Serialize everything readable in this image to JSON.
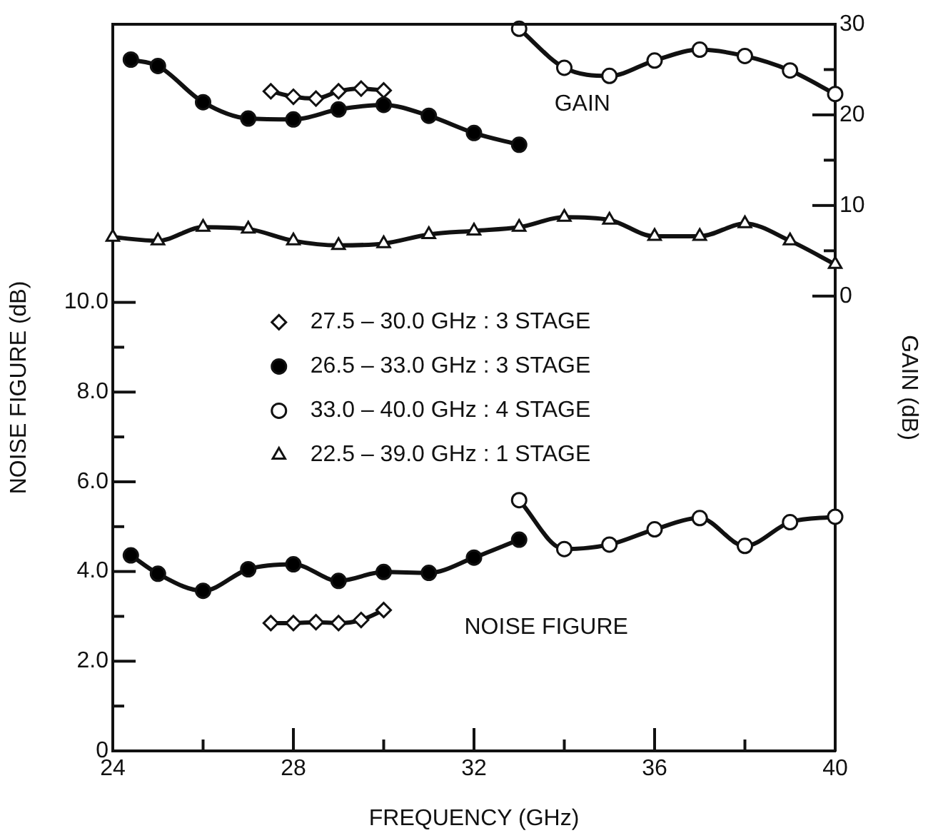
{
  "chart_data": {
    "type": "line",
    "xlabel": "FREQUENCY (GHz)",
    "ylabel": "NOISE FIGURE (dB)",
    "y2label": "GAIN (dB)",
    "xlim": [
      24,
      40
    ],
    "xticks": [
      24,
      {
        "value": 26,
        "label": null
      },
      28,
      {
        "value": 30,
        "label": null
      },
      32,
      {
        "value": 34,
        "label": null
      },
      36,
      {
        "value": 38,
        "label": null
      },
      40
    ],
    "ylim": [
      0,
      16.2
    ],
    "yticks": [
      0,
      {
        "value": 1,
        "label": null
      },
      {
        "value": 2,
        "label": "2.0"
      },
      {
        "value": 3,
        "label": null
      },
      {
        "value": 4,
        "label": "4.0"
      },
      {
        "value": 5,
        "label": null
      },
      {
        "value": 6,
        "label": "6.0"
      },
      {
        "value": 7,
        "label": null
      },
      {
        "value": 8,
        "label": "8.0"
      },
      {
        "value": 9,
        "label": null
      },
      {
        "value": 10,
        "label": "10.0"
      }
    ],
    "y2lim": [
      -50.2,
      30
    ],
    "y2ticks": [
      0,
      {
        "value": 5,
        "label": null
      },
      10,
      {
        "value": 15,
        "label": null
      },
      20,
      {
        "value": 25,
        "label": null
      },
      30
    ],
    "grid": false,
    "legend": "left",
    "line_style": "solid",
    "annotations": [
      "GAIN",
      "NOISE FIGURE"
    ],
    "series": [
      {
        "name": "27.5 – 30.0 GHz : 3 STAGE",
        "color": "#ffffff",
        "marker": "diamond",
        "x": [
          27.5,
          28,
          28.5,
          29,
          29.5,
          30
        ],
        "values": [
          2.85,
          2.85,
          2.87,
          2.85,
          2.92,
          3.14
        ]
      },
      {
        "name": "26.5 – 33.0 GHz : 3 STAGE",
        "color": "#000000",
        "marker": "circle",
        "x": [
          24.4,
          25,
          26,
          27,
          28,
          29,
          30,
          31,
          32,
          33
        ],
        "values": [
          4.36,
          3.95,
          3.57,
          4.05,
          4.16,
          3.79,
          3.99,
          3.97,
          4.31,
          4.71
        ]
      },
      {
        "name": "33.0 – 40.0 GHz : 4 STAGE",
        "color": "#ffffff",
        "marker": "circle",
        "x": [
          33,
          34,
          35,
          36,
          37,
          38,
          39,
          40
        ],
        "values": [
          5.59,
          4.5,
          4.6,
          4.94,
          5.19,
          4.57,
          5.1,
          5.22
        ]
      },
      {
        "name": "22.5 – 39.0 GHz : 1 STAGE",
        "color": "#ffffff",
        "marker": "triangle",
        "axis": "y2",
        "x": [
          24,
          25,
          26,
          27,
          28,
          29,
          30,
          31,
          32,
          33,
          34,
          35,
          36,
          37,
          38,
          39,
          40
        ],
        "values": [
          6.5,
          6.1,
          7.6,
          7.4,
          6.1,
          5.6,
          5.8,
          6.8,
          7.2,
          7.6,
          8.7,
          8.4,
          6.6,
          6.6,
          8.0,
          6.1,
          3.5
        ]
      },
      {
        "color": "#ffffff",
        "marker": "diamond",
        "axis": "y2",
        "x": [
          27.5,
          28,
          28.5,
          29,
          29.5,
          30
        ],
        "values": [
          22.6,
          22.0,
          21.8,
          22.6,
          22.9,
          22.7
        ]
      },
      {
        "color": "#000000",
        "marker": "circle",
        "axis": "y2",
        "x": [
          24.4,
          25,
          26,
          27,
          28,
          29,
          30,
          31,
          32,
          33
        ],
        "values": [
          26.1,
          25.4,
          21.4,
          19.6,
          19.5,
          20.6,
          21.1,
          19.9,
          18.0,
          16.7
        ]
      },
      {
        "color": "#ffffff",
        "marker": "circle",
        "axis": "y2",
        "x": [
          33,
          34,
          35,
          36,
          37,
          38,
          39,
          40
        ],
        "values": [
          29.5,
          25.2,
          24.3,
          26.0,
          27.2,
          26.5,
          24.9,
          22.3
        ]
      }
    ]
  }
}
